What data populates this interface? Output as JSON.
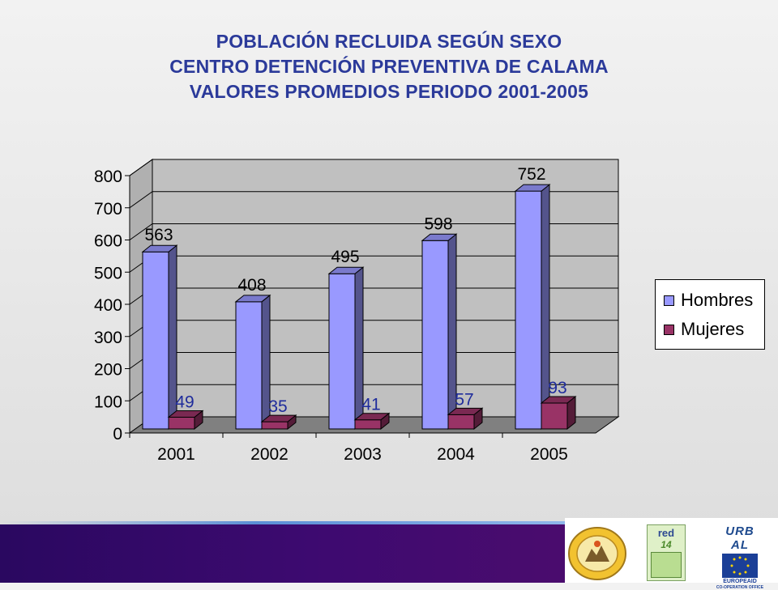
{
  "title_lines": [
    "POBLACIÓN RECLUIDA SEGÚN SEXO",
    "CENTRO DETENCIÓN PREVENTIVA DE CALAMA",
    "VALORES PROMEDIOS PERIODO 2001-2005"
  ],
  "chart_data": {
    "type": "bar",
    "style": "3d-clustered-column",
    "categories": [
      "2001",
      "2002",
      "2003",
      "2004",
      "2005"
    ],
    "series": [
      {
        "name": "Hombres",
        "values": [
          563,
          408,
          495,
          598,
          752
        ],
        "color": "#9999ff"
      },
      {
        "name": "Mujeres",
        "values": [
          49,
          35,
          41,
          57,
          93
        ],
        "color": "#993366"
      }
    ],
    "yticks": [
      "0",
      "100",
      "200",
      "300",
      "400",
      "500",
      "600",
      "700",
      "800"
    ],
    "ylim": [
      0,
      800
    ],
    "grid": true,
    "legend": "right",
    "data_labels": {
      "Hombres": [
        "563",
        "408",
        "495",
        "598",
        "752"
      ],
      "Mujeres": [
        "49",
        "35",
        "41",
        "57",
        "93"
      ]
    },
    "colors": {
      "wall": "#c0c0c0",
      "floor": "#808080",
      "mujeres_label": "#1f2c9c",
      "hombres_label": "#000000"
    }
  },
  "footer": {
    "urbal_text": "URB AL",
    "red_text": "red",
    "red_number": "14",
    "eu_caption_line1": "EUROPEAID",
    "eu_caption_line2": "CO-OPERATION OFFICE"
  }
}
